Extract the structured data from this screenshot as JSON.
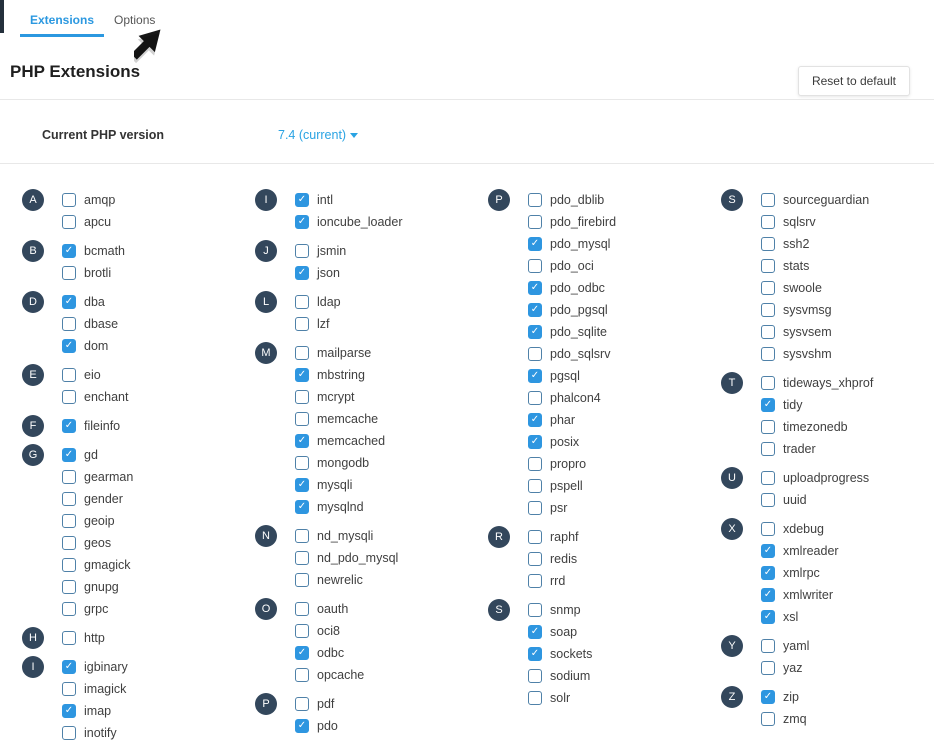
{
  "tabs": [
    {
      "label": "Extensions",
      "active": true
    },
    {
      "label": "Options",
      "active": false
    }
  ],
  "header": {
    "title": "PHP Extensions",
    "reset_button": "Reset to default"
  },
  "php_version": {
    "label": "Current PHP version",
    "value": "7.4 (current)"
  },
  "colors": {
    "accent": "#2b98e0",
    "badge": "#33475c",
    "checkbox_checked": "#2e96e0",
    "checkbox_border": "#4f81a8",
    "link": "#29a3e3"
  },
  "columns": [
    [
      {
        "letter": "A",
        "items": [
          {
            "name": "amqp",
            "checked": false
          },
          {
            "name": "apcu",
            "checked": false
          }
        ]
      },
      {
        "letter": "B",
        "items": [
          {
            "name": "bcmath",
            "checked": true
          },
          {
            "name": "brotli",
            "checked": false
          }
        ]
      },
      {
        "letter": "D",
        "items": [
          {
            "name": "dba",
            "checked": true
          },
          {
            "name": "dbase",
            "checked": false
          },
          {
            "name": "dom",
            "checked": true
          }
        ]
      },
      {
        "letter": "E",
        "items": [
          {
            "name": "eio",
            "checked": false
          },
          {
            "name": "enchant",
            "checked": false
          }
        ]
      },
      {
        "letter": "F",
        "items": [
          {
            "name": "fileinfo",
            "checked": true
          }
        ]
      },
      {
        "letter": "G",
        "items": [
          {
            "name": "gd",
            "checked": true
          },
          {
            "name": "gearman",
            "checked": false
          },
          {
            "name": "gender",
            "checked": false
          },
          {
            "name": "geoip",
            "checked": false
          },
          {
            "name": "geos",
            "checked": false
          },
          {
            "name": "gmagick",
            "checked": false
          },
          {
            "name": "gnupg",
            "checked": false
          },
          {
            "name": "grpc",
            "checked": false
          }
        ]
      },
      {
        "letter": "H",
        "items": [
          {
            "name": "http",
            "checked": false
          }
        ]
      },
      {
        "letter": "I",
        "items": [
          {
            "name": "igbinary",
            "checked": true
          },
          {
            "name": "imagick",
            "checked": false
          },
          {
            "name": "imap",
            "checked": true
          },
          {
            "name": "inotify",
            "checked": false
          }
        ]
      }
    ],
    [
      {
        "letter": "I",
        "items": [
          {
            "name": "intl",
            "checked": true
          },
          {
            "name": "ioncube_loader",
            "checked": true
          }
        ]
      },
      {
        "letter": "J",
        "items": [
          {
            "name": "jsmin",
            "checked": false
          },
          {
            "name": "json",
            "checked": true
          }
        ]
      },
      {
        "letter": "L",
        "items": [
          {
            "name": "ldap",
            "checked": false
          },
          {
            "name": "lzf",
            "checked": false
          }
        ]
      },
      {
        "letter": "M",
        "items": [
          {
            "name": "mailparse",
            "checked": false
          },
          {
            "name": "mbstring",
            "checked": true
          },
          {
            "name": "mcrypt",
            "checked": false
          },
          {
            "name": "memcache",
            "checked": false
          },
          {
            "name": "memcached",
            "checked": true
          },
          {
            "name": "mongodb",
            "checked": false
          },
          {
            "name": "mysqli",
            "checked": true
          },
          {
            "name": "mysqlnd",
            "checked": true
          }
        ]
      },
      {
        "letter": "N",
        "items": [
          {
            "name": "nd_mysqli",
            "checked": false
          },
          {
            "name": "nd_pdo_mysql",
            "checked": false
          },
          {
            "name": "newrelic",
            "checked": false
          }
        ]
      },
      {
        "letter": "O",
        "items": [
          {
            "name": "oauth",
            "checked": false
          },
          {
            "name": "oci8",
            "checked": false
          },
          {
            "name": "odbc",
            "checked": true
          },
          {
            "name": "opcache",
            "checked": false
          }
        ]
      },
      {
        "letter": "P",
        "items": [
          {
            "name": "pdf",
            "checked": false
          },
          {
            "name": "pdo",
            "checked": true
          }
        ]
      }
    ],
    [
      {
        "letter": "P",
        "items": [
          {
            "name": "pdo_dblib",
            "checked": false
          },
          {
            "name": "pdo_firebird",
            "checked": false
          },
          {
            "name": "pdo_mysql",
            "checked": true
          },
          {
            "name": "pdo_oci",
            "checked": false
          },
          {
            "name": "pdo_odbc",
            "checked": true
          },
          {
            "name": "pdo_pgsql",
            "checked": true
          },
          {
            "name": "pdo_sqlite",
            "checked": true
          },
          {
            "name": "pdo_sqlsrv",
            "checked": false
          },
          {
            "name": "pgsql",
            "checked": true
          },
          {
            "name": "phalcon4",
            "checked": false
          },
          {
            "name": "phar",
            "checked": true
          },
          {
            "name": "posix",
            "checked": true
          },
          {
            "name": "propro",
            "checked": false
          },
          {
            "name": "pspell",
            "checked": false
          },
          {
            "name": "psr",
            "checked": false
          }
        ]
      },
      {
        "letter": "R",
        "items": [
          {
            "name": "raphf",
            "checked": false
          },
          {
            "name": "redis",
            "checked": false
          },
          {
            "name": "rrd",
            "checked": false
          }
        ]
      },
      {
        "letter": "S",
        "items": [
          {
            "name": "snmp",
            "checked": false
          },
          {
            "name": "soap",
            "checked": true
          },
          {
            "name": "sockets",
            "checked": true
          },
          {
            "name": "sodium",
            "checked": false
          },
          {
            "name": "solr",
            "checked": false
          }
        ]
      }
    ],
    [
      {
        "letter": "S",
        "items": [
          {
            "name": "sourceguardian",
            "checked": false
          },
          {
            "name": "sqlsrv",
            "checked": false
          },
          {
            "name": "ssh2",
            "checked": false
          },
          {
            "name": "stats",
            "checked": false
          },
          {
            "name": "swoole",
            "checked": false
          },
          {
            "name": "sysvmsg",
            "checked": false
          },
          {
            "name": "sysvsem",
            "checked": false
          },
          {
            "name": "sysvshm",
            "checked": false
          }
        ]
      },
      {
        "letter": "T",
        "items": [
          {
            "name": "tideways_xhprof",
            "checked": false
          },
          {
            "name": "tidy",
            "checked": true
          },
          {
            "name": "timezonedb",
            "checked": false
          },
          {
            "name": "trader",
            "checked": false
          }
        ]
      },
      {
        "letter": "U",
        "items": [
          {
            "name": "uploadprogress",
            "checked": false
          },
          {
            "name": "uuid",
            "checked": false
          }
        ]
      },
      {
        "letter": "X",
        "items": [
          {
            "name": "xdebug",
            "checked": false
          },
          {
            "name": "xmlreader",
            "checked": true
          },
          {
            "name": "xmlrpc",
            "checked": true
          },
          {
            "name": "xmlwriter",
            "checked": true
          },
          {
            "name": "xsl",
            "checked": true
          }
        ]
      },
      {
        "letter": "Y",
        "items": [
          {
            "name": "yaml",
            "checked": false
          },
          {
            "name": "yaz",
            "checked": false
          }
        ]
      },
      {
        "letter": "Z",
        "items": [
          {
            "name": "zip",
            "checked": true
          },
          {
            "name": "zmq",
            "checked": false
          }
        ]
      }
    ]
  ]
}
